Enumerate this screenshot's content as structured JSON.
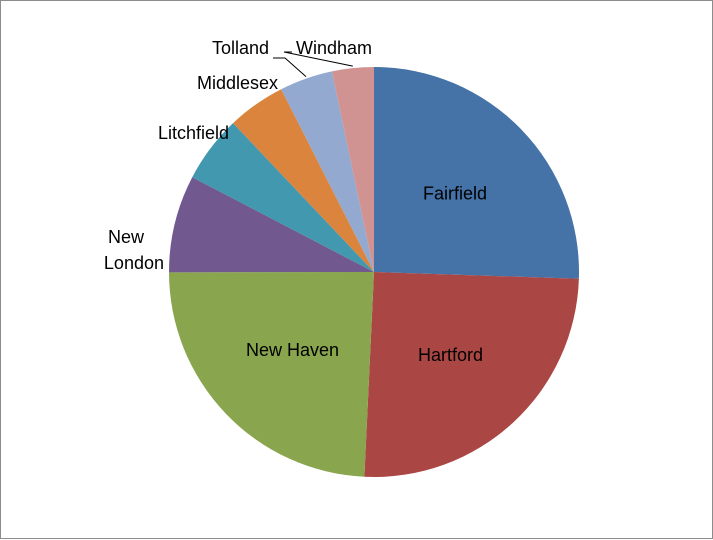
{
  "chart_data": {
    "type": "pie",
    "title": "",
    "categories": [
      "Fairfield",
      "Hartford",
      "New Haven",
      "New London",
      "Litchfield",
      "Middlesex",
      "Tolland",
      "Windham"
    ],
    "values": [
      25.6,
      25.3,
      24.3,
      7.7,
      5.3,
      4.6,
      4.2,
      3.3
    ],
    "colors": [
      "#4572A7",
      "#AA4643",
      "#89A54E",
      "#71588F",
      "#4198AF",
      "#DB843D",
      "#93A9CF",
      "#D19392"
    ],
    "start_angle_deg": 0,
    "direction": "clockwise",
    "legend": "none"
  }
}
